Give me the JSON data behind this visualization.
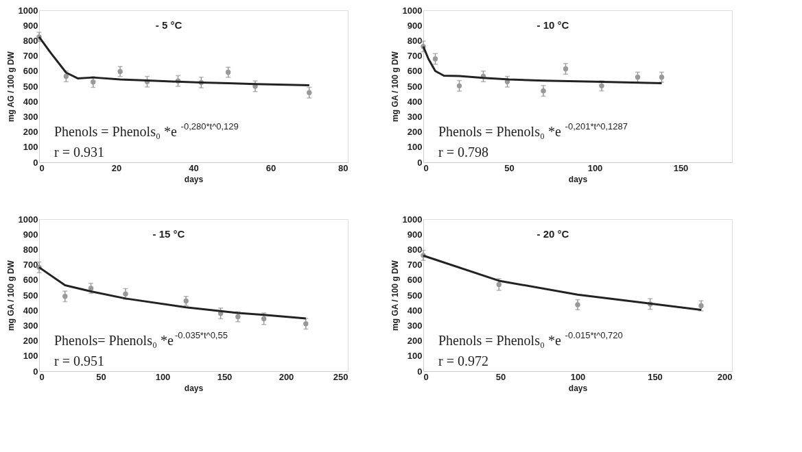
{
  "chart_data": [
    {
      "type": "scatter",
      "title": "- 5 °C",
      "xlabel": "days",
      "ylabel": "mg AG / 100 g DW",
      "xlim": [
        0,
        80
      ],
      "xticks": [
        0,
        20,
        40,
        60,
        80
      ],
      "ylim": [
        0,
        1000
      ],
      "yticks": [
        0,
        100,
        200,
        300,
        400,
        500,
        600,
        700,
        800,
        900,
        1000
      ],
      "grid": false,
      "annotations": [
        "Phenols = Phenols₀ *e$^{-0,280*t^0,129}$",
        "r = 0.931"
      ],
      "series": [
        {
          "color": "#999999",
          "marker": "circle",
          "x": [
            0,
            7,
            14,
            21,
            28,
            36,
            42,
            49,
            56,
            70
          ],
          "values": [
            825,
            565,
            528,
            597,
            530,
            535,
            525,
            592,
            500,
            458
          ],
          "errors": [
            30,
            35,
            35,
            33,
            35,
            35,
            35,
            33,
            35,
            35
          ]
        },
        {
          "type": "line",
          "marker": "none",
          "color": "#222222",
          "x": [
            0,
            3,
            7,
            10,
            14,
            21,
            28,
            36,
            42,
            49,
            56,
            70
          ],
          "values": [
            825,
            720,
            590,
            552,
            558,
            545,
            538,
            530,
            525,
            520,
            515,
            507
          ]
        }
      ]
    },
    {
      "type": "scatter",
      "title": "- 10 °C",
      "xlabel": "days",
      "ylabel": "mg GA / 100 g DW",
      "xlim": [
        0,
        180
      ],
      "xticks": [
        0,
        50,
        100,
        150
      ],
      "ylim": [
        0,
        1000
      ],
      "yticks": [
        0,
        100,
        200,
        300,
        400,
        500,
        600,
        700,
        800,
        900,
        1000
      ],
      "grid": false,
      "annotations": [
        "Phenols = Phenols₀ *e$^{-0,201*t^0,1287}$",
        "r = 0.798"
      ],
      "series": [
        {
          "color": "#999999",
          "marker": "circle",
          "x": [
            0,
            7,
            21,
            35,
            49,
            70,
            83,
            104,
            125,
            139
          ],
          "values": [
            762,
            680,
            503,
            565,
            530,
            470,
            615,
            503,
            560,
            560
          ],
          "errors": [
            35,
            35,
            35,
            35,
            35,
            35,
            35,
            33,
            33,
            33
          ]
        },
        {
          "type": "line",
          "marker": "none",
          "color": "#222222",
          "x": [
            0,
            3,
            7,
            12,
            21,
            35,
            50,
            70,
            100,
            139
          ],
          "values": [
            762,
            680,
            600,
            570,
            568,
            555,
            545,
            537,
            530,
            520
          ]
        }
      ]
    },
    {
      "type": "scatter",
      "title": "- 15 °C",
      "xlabel": "days",
      "ylabel": "mg GA / 100 g DW",
      "xlim": [
        0,
        250
      ],
      "xticks": [
        0,
        50,
        100,
        150,
        200,
        250
      ],
      "ylim": [
        0,
        1000
      ],
      "yticks": [
        0,
        100,
        200,
        300,
        400,
        500,
        600,
        700,
        800,
        900,
        1000
      ],
      "grid": false,
      "annotations": [
        "Phenols= Phenols₀ *e$^{-0.035*t^0,55}$",
        "r = 0.951"
      ],
      "series": [
        {
          "color": "#999999",
          "marker": "circle",
          "x": [
            0,
            21,
            42,
            70,
            119,
            147,
            161,
            182,
            216
          ],
          "values": [
            683,
            492,
            545,
            508,
            462,
            380,
            358,
            345,
            312
          ],
          "errors": [
            35,
            35,
            33,
            35,
            30,
            35,
            33,
            38,
            35
          ]
        },
        {
          "type": "line",
          "marker": "none",
          "color": "#222222",
          "x": [
            0,
            21,
            42,
            70,
            119,
            147,
            161,
            182,
            216
          ],
          "values": [
            683,
            565,
            525,
            478,
            420,
            395,
            383,
            370,
            347
          ]
        }
      ]
    },
    {
      "type": "scatter",
      "title": "- 20 °C",
      "xlabel": "days",
      "ylabel": "mg GA / 100 g DW",
      "xlim": [
        0,
        200
      ],
      "xticks": [
        0,
        50,
        100,
        150,
        200
      ],
      "ylim": [
        0,
        1000
      ],
      "yticks": [
        0,
        100,
        200,
        300,
        400,
        500,
        600,
        700,
        800,
        900,
        1000
      ],
      "grid": false,
      "annotations": [
        "Phenols = Phenols₀ *e$^{-0.015*t^0,720}$",
        "r = 0.972"
      ],
      "series": [
        {
          "color": "#999999",
          "marker": "circle",
          "x": [
            0,
            49,
            100,
            147,
            180
          ],
          "values": [
            762,
            570,
            437,
            442,
            430
          ],
          "errors": [
            33,
            38,
            33,
            35,
            33
          ]
        },
        {
          "type": "line",
          "marker": "none",
          "color": "#222222",
          "x": [
            0,
            49,
            100,
            147,
            180
          ],
          "values": [
            760,
            595,
            503,
            445,
            403
          ]
        }
      ]
    }
  ]
}
